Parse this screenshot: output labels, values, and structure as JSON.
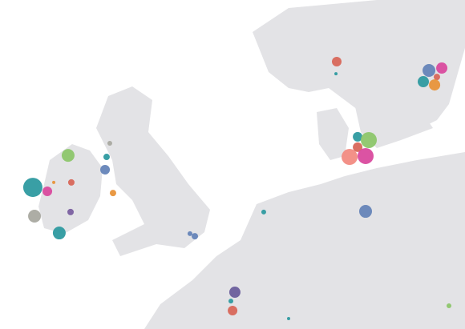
{
  "map": {
    "type": "bubble-map",
    "points": [
      {
        "lon": -13.34,
        "lat": 53.93,
        "size": 144,
        "color": "#2e9aa0"
      },
      {
        "lon": -12.21,
        "lat": 53.75,
        "size": 36,
        "color": "#d94a9e"
      },
      {
        "lon": -13.21,
        "lat": 52.6,
        "size": 64,
        "color": "#a9a9a0"
      },
      {
        "lon": -11.28,
        "lat": 51.82,
        "size": 64,
        "color": "#2e9aa0"
      },
      {
        "lon": -10.59,
        "lat": 55.41,
        "size": 64,
        "color": "#8dc66c"
      },
      {
        "lon": -7.71,
        "lat": 54.75,
        "size": 36,
        "color": "#6584b8"
      },
      {
        "lon": -7.59,
        "lat": 55.34,
        "size": 16,
        "color": "#2e9aa0"
      },
      {
        "lon": -7.34,
        "lat": 55.97,
        "size": 9,
        "color": "#a9a9a0"
      },
      {
        "lon": -7.09,
        "lat": 53.67,
        "size": 16,
        "color": "#e8943a"
      },
      {
        "lon": -10.4,
        "lat": 52.79,
        "size": 16,
        "color": "#7a5fa0"
      },
      {
        "lon": -10.34,
        "lat": 54.16,
        "size": 16,
        "color": "#d8675a"
      },
      {
        "lon": 10.35,
        "lat": 59.75,
        "size": 36,
        "color": "#d8675a"
      },
      {
        "lon": 10.29,
        "lat": 59.19,
        "size": 4,
        "color": "#2e9aa0"
      },
      {
        "lon": 17.54,
        "lat": 59.34,
        "size": 64,
        "color": "#6584b8"
      },
      {
        "lon": 18.54,
        "lat": 59.45,
        "size": 49,
        "color": "#d94a9e"
      },
      {
        "lon": 18.16,
        "lat": 59.04,
        "size": 16,
        "color": "#d8675a"
      },
      {
        "lon": 17.1,
        "lat": 58.82,
        "size": 49,
        "color": "#2e9aa0"
      },
      {
        "lon": 17.98,
        "lat": 58.67,
        "size": 49,
        "color": "#e8943a"
      },
      {
        "lon": 11.98,
        "lat": 56.27,
        "size": 36,
        "color": "#2e9aa0"
      },
      {
        "lon": 12.85,
        "lat": 56.12,
        "size": 100,
        "color": "#8dc66c"
      },
      {
        "lon": 11.98,
        "lat": 55.79,
        "size": 36,
        "color": "#d8675a"
      },
      {
        "lon": 11.35,
        "lat": 55.34,
        "size": 100,
        "color": "#f28b82"
      },
      {
        "lon": 12.6,
        "lat": 55.38,
        "size": 100,
        "color": "#d94a9e"
      },
      {
        "lon": 12.6,
        "lat": 52.82,
        "size": 64,
        "color": "#6584b8"
      },
      {
        "lon": 4.66,
        "lat": 52.79,
        "size": 9,
        "color": "#2e9aa0"
      },
      {
        "lon": 2.41,
        "lat": 49.08,
        "size": 49,
        "color": "#6a5e9c"
      },
      {
        "lon": 2.23,
        "lat": 48.23,
        "size": 36,
        "color": "#d8675a"
      },
      {
        "lon": 2.1,
        "lat": 48.67,
        "size": 9,
        "color": "#2e9aa0"
      },
      {
        "lon": -1.09,
        "lat": 51.79,
        "size": 9,
        "color": "#6584b8"
      },
      {
        "lon": -0.71,
        "lat": 51.67,
        "size": 16,
        "color": "#6584b8"
      },
      {
        "lon": 6.6,
        "lat": 47.86,
        "size": 4,
        "color": "#2e9aa0"
      },
      {
        "lon": 19.1,
        "lat": 48.45,
        "size": 9,
        "color": "#8dc66c"
      },
      {
        "lon": -11.71,
        "lat": 54.16,
        "size": 4,
        "color": "#e8943a"
      }
    ]
  }
}
